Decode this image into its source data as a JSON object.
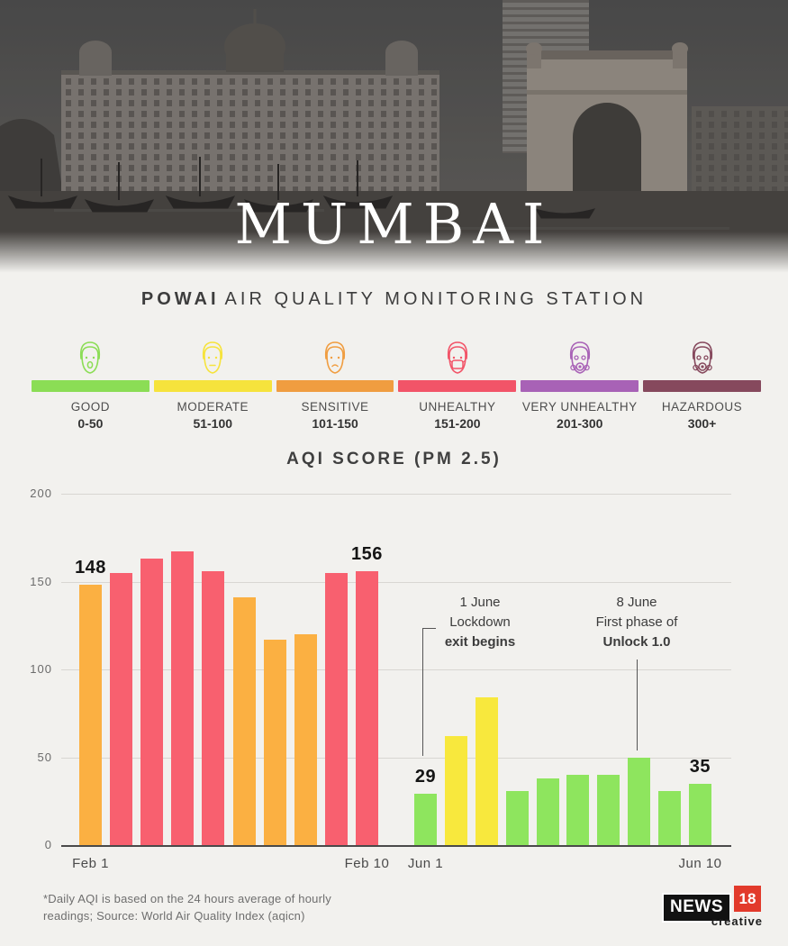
{
  "header": {
    "city": "MUMBAI",
    "station_bold": "POWAI",
    "station_rest": "AIR QUALITY MONITORING STATION"
  },
  "legend": {
    "items": [
      {
        "name": "GOOD",
        "range": "0-50",
        "color": "#8bdd55",
        "icon": "happy-face-icon"
      },
      {
        "name": "MODERATE",
        "range": "51-100",
        "color": "#f6e33c",
        "icon": "neutral-face-icon"
      },
      {
        "name": "SENSITIVE",
        "range": "101-150",
        "color": "#f09d40",
        "icon": "sad-face-icon"
      },
      {
        "name": "UNHEALTHY",
        "range": "151-200",
        "color": "#f25468",
        "icon": "masked-face-icon"
      },
      {
        "name": "VERY UNHEALTHY",
        "range": "201-300",
        "color": "#a862b6",
        "icon": "gas-mask-face-icon"
      },
      {
        "name": "HAZARDOUS",
        "range": "300+",
        "color": "#86495d",
        "icon": "respirator-face-icon"
      }
    ]
  },
  "chart_data": {
    "type": "bar",
    "title": "AQI SCORE (PM 2.5)",
    "ylim": [
      0,
      200
    ],
    "yticks": [
      200,
      150,
      100,
      50,
      0
    ],
    "grid": true,
    "category_colors": {
      "good": "#8ee55e",
      "moderate": "#f8e83d",
      "sensitive": "#fbb042",
      "unhealthy": "#f8606f"
    },
    "groups": [
      {
        "axis_start_label": "Feb 1",
        "axis_end_label": "Feb 10",
        "bars": [
          {
            "value": 148,
            "category": "sensitive",
            "label": "148"
          },
          {
            "value": 155,
            "category": "unhealthy"
          },
          {
            "value": 163,
            "category": "unhealthy"
          },
          {
            "value": 167,
            "category": "unhealthy"
          },
          {
            "value": 156,
            "category": "unhealthy"
          },
          {
            "value": 141,
            "category": "sensitive"
          },
          {
            "value": 117,
            "category": "sensitive"
          },
          {
            "value": 120,
            "category": "sensitive"
          },
          {
            "value": 155,
            "category": "unhealthy"
          },
          {
            "value": 156,
            "category": "unhealthy",
            "label": "156"
          }
        ]
      },
      {
        "axis_start_label": "Jun 1",
        "axis_end_label": "Jun 10",
        "bars": [
          {
            "value": 29,
            "category": "good",
            "label": "29"
          },
          {
            "value": 62,
            "category": "moderate"
          },
          {
            "value": 84,
            "category": "moderate"
          },
          {
            "value": 31,
            "category": "good"
          },
          {
            "value": 38,
            "category": "good"
          },
          {
            "value": 40,
            "category": "good"
          },
          {
            "value": 40,
            "category": "good"
          },
          {
            "value": 50,
            "category": "good"
          },
          {
            "value": 31,
            "category": "good"
          },
          {
            "value": 35,
            "category": "good",
            "label": "35"
          }
        ]
      }
    ],
    "annotations": [
      {
        "line1": "1 June",
        "line2": "Lockdown",
        "line3": "exit begins"
      },
      {
        "line1": "8 June",
        "line2": "First phase of",
        "line3": "Unlock 1.0"
      }
    ]
  },
  "footer": {
    "note_line1": "*Daily AQI is based on the 24 hours average of hourly",
    "note_line2": "readings; Source: World Air Quality Index (aqicn)",
    "logo": {
      "news": "NEWS",
      "num": "18",
      "sub": "creative"
    }
  }
}
